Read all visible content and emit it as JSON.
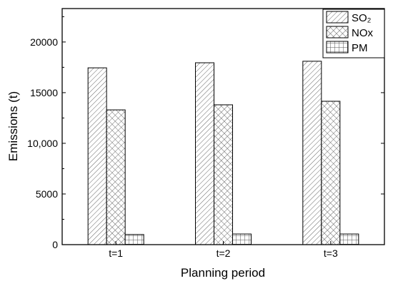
{
  "chart_data": {
    "type": "bar",
    "categories": [
      "t=1",
      "t=2",
      "t=3"
    ],
    "series": [
      {
        "name": "SO₂",
        "values": [
          17450,
          17950,
          18100
        ],
        "pattern": "diagonal"
      },
      {
        "name": "NOx",
        "values": [
          13300,
          13800,
          14150
        ],
        "pattern": "crosshatch"
      },
      {
        "name": "PM",
        "values": [
          1000,
          1050,
          1050
        ],
        "pattern": "grid"
      }
    ],
    "xlabel": "Planning period",
    "ylabel": "Emissions (t)",
    "ylim": [
      0,
      23300
    ],
    "yticks": [
      0,
      5000,
      10000,
      15000,
      20000
    ],
    "ytick_labels": [
      "0",
      "5000",
      "10,000",
      "15000",
      "20000"
    ],
    "legend": "top-right",
    "grid": false,
    "colors": {
      "axis": "#000000",
      "bar_fill": "#ffffff",
      "hatch": "#555555"
    }
  }
}
